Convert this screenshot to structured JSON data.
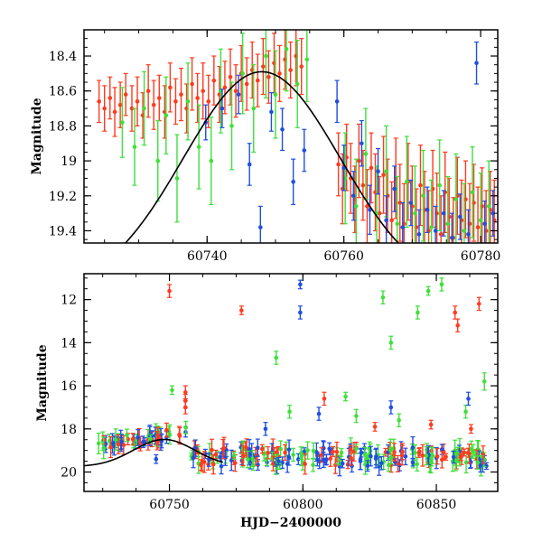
{
  "colors": {
    "red": "#ff3a1f",
    "green": "#3ee03a",
    "blue": "#1f4fe0",
    "fit": "#000000",
    "frame": "#000000"
  },
  "chart_data": [
    {
      "type": "scatter",
      "title": "",
      "xlabel": "",
      "ylabel": "Magnitude",
      "xlim": [
        60722,
        60782.5
      ],
      "ylim": [
        19.47,
        18.25
      ],
      "y_inverted": true,
      "x_ticks": [
        60740,
        60760,
        60780
      ],
      "x_tick_labels": [
        "60740",
        "60760",
        "60780"
      ],
      "y_ticks": [
        18.4,
        18.6,
        18.8,
        19,
        19.2,
        19.4
      ],
      "y_tick_labels": [
        "18.4",
        "18.6",
        "18.8",
        "19",
        "19.2",
        "19.4"
      ],
      "error_bars": true,
      "fit_curve": {
        "peak_x": 60748,
        "peak_mag": 18.49,
        "width_days": 11.5,
        "base_mag": 19.75
      },
      "series": [
        {
          "color_key": "red",
          "points": [
            [
              60724.2,
              18.66,
              0.12
            ],
            [
              60725.0,
              18.7,
              0.13
            ],
            [
              60725.8,
              18.64,
              0.12
            ],
            [
              60726.5,
              18.72,
              0.14
            ],
            [
              60727.3,
              18.68,
              0.13
            ],
            [
              60728.1,
              18.62,
              0.12
            ],
            [
              60729.0,
              18.7,
              0.13
            ],
            [
              60729.8,
              18.66,
              0.14
            ],
            [
              60730.6,
              18.74,
              0.13
            ],
            [
              60731.4,
              18.6,
              0.15
            ],
            [
              60732.2,
              18.68,
              0.14
            ],
            [
              60733.0,
              18.64,
              0.13
            ],
            [
              60733.8,
              18.72,
              0.15
            ],
            [
              60734.6,
              18.58,
              0.14
            ],
            [
              60735.4,
              18.66,
              0.13
            ],
            [
              60736.2,
              18.62,
              0.15
            ],
            [
              60737.0,
              18.7,
              0.14
            ],
            [
              60737.8,
              18.56,
              0.15
            ],
            [
              60738.6,
              18.64,
              0.14
            ],
            [
              60739.4,
              18.6,
              0.16
            ],
            [
              60740.2,
              18.66,
              0.15
            ],
            [
              60741.0,
              18.54,
              0.14
            ],
            [
              60741.8,
              18.62,
              0.16
            ],
            [
              60742.6,
              18.58,
              0.15
            ],
            [
              60743.4,
              18.52,
              0.16
            ],
            [
              60744.2,
              18.6,
              0.15
            ],
            [
              60745.0,
              18.5,
              0.16
            ],
            [
              60745.8,
              18.56,
              0.15
            ],
            [
              60746.6,
              18.48,
              0.16
            ],
            [
              60747.4,
              18.54,
              0.15
            ],
            [
              60748.2,
              18.46,
              0.16
            ],
            [
              60749.0,
              18.52,
              0.15
            ],
            [
              60749.8,
              18.44,
              0.17
            ],
            [
              60750.6,
              18.5,
              0.16
            ],
            [
              60751.4,
              18.42,
              0.17
            ],
            [
              60752.2,
              18.48,
              0.16
            ],
            [
              60753.0,
              18.4,
              0.17
            ],
            [
              60753.8,
              18.46,
              0.16
            ],
            [
              60759.2,
              19.02,
              0.18
            ],
            [
              60759.8,
              19.16,
              0.2
            ],
            [
              60760.4,
              18.98,
              0.19
            ],
            [
              60761.0,
              19.1,
              0.2
            ],
            [
              60761.6,
              19.22,
              0.19
            ],
            [
              60762.2,
              19.0,
              0.21
            ],
            [
              60762.8,
              19.14,
              0.2
            ],
            [
              60763.4,
              19.26,
              0.21
            ],
            [
              60764.0,
              19.04,
              0.2
            ],
            [
              60764.6,
              19.18,
              0.22
            ],
            [
              60765.2,
              19.3,
              0.21
            ],
            [
              60765.8,
              19.08,
              0.22
            ],
            [
              60766.4,
              19.2,
              0.21
            ],
            [
              60767.0,
              19.34,
              0.22
            ],
            [
              60767.6,
              19.1,
              0.23
            ],
            [
              60768.2,
              19.24,
              0.22
            ],
            [
              60768.8,
              19.36,
              0.23
            ],
            [
              60769.4,
              19.12,
              0.22
            ],
            [
              60770.0,
              19.26,
              0.23
            ],
            [
              60770.6,
              19.38,
              0.22
            ],
            [
              60771.2,
              19.14,
              0.23
            ],
            [
              60771.8,
              19.28,
              0.22
            ],
            [
              60772.4,
              19.4,
              0.23
            ],
            [
              60773.0,
              19.16,
              0.22
            ],
            [
              60773.6,
              19.3,
              0.23
            ],
            [
              60774.2,
              19.42,
              0.22
            ],
            [
              60774.8,
              19.18,
              0.23
            ],
            [
              60775.4,
              19.32,
              0.22
            ],
            [
              60776.0,
              19.44,
              0.23
            ],
            [
              60776.6,
              19.2,
              0.22
            ],
            [
              60777.2,
              19.34,
              0.23
            ],
            [
              60777.8,
              19.22,
              0.22
            ],
            [
              60778.4,
              19.36,
              0.23
            ],
            [
              60779.0,
              19.24,
              0.22
            ],
            [
              60779.6,
              19.38,
              0.23
            ],
            [
              60780.2,
              19.26,
              0.22
            ],
            [
              60780.8,
              19.4,
              0.23
            ],
            [
              60781.4,
              19.28,
              0.22
            ],
            [
              60782.0,
              19.34,
              0.23
            ]
          ]
        },
        {
          "color_key": "green",
          "points": [
            [
              60727.6,
              18.78,
              0.2
            ],
            [
              60729.4,
              18.92,
              0.22
            ],
            [
              60730.8,
              18.7,
              0.21
            ],
            [
              60732.8,
              19.0,
              0.23
            ],
            [
              60734.0,
              18.74,
              0.22
            ],
            [
              60735.6,
              19.1,
              0.25
            ],
            [
              60737.2,
              18.66,
              0.22
            ],
            [
              60738.8,
              18.92,
              0.24
            ],
            [
              60740.6,
              19.0,
              0.25
            ],
            [
              60742.0,
              18.6,
              0.24
            ],
            [
              60743.6,
              18.8,
              0.25
            ],
            [
              60745.2,
              18.5,
              0.23
            ],
            [
              60746.8,
              18.7,
              0.25
            ],
            [
              60748.6,
              18.4,
              0.24
            ],
            [
              60750.0,
              18.62,
              0.25
            ],
            [
              60751.6,
              18.36,
              0.24
            ],
            [
              60753.2,
              18.56,
              0.25
            ],
            [
              60754.6,
              18.42,
              0.24
            ],
            [
              60760.2,
              19.1,
              0.26
            ],
            [
              60761.8,
              19.26,
              0.27
            ],
            [
              60763.2,
              18.96,
              0.26
            ],
            [
              60764.8,
              19.3,
              0.27
            ],
            [
              60766.2,
              19.06,
              0.26
            ],
            [
              60767.8,
              19.36,
              0.27
            ],
            [
              60769.2,
              19.12,
              0.26
            ],
            [
              60770.4,
              19.3,
              0.27
            ],
            [
              60771.6,
              19.2,
              0.26
            ],
            [
              60772.8,
              19.38,
              0.27
            ],
            [
              60774.0,
              19.14,
              0.26
            ],
            [
              60775.2,
              19.36,
              0.27
            ],
            [
              60776.4,
              19.22,
              0.26
            ],
            [
              60777.6,
              19.4,
              0.27
            ],
            [
              60778.8,
              19.18,
              0.26
            ],
            [
              60780.0,
              19.34,
              0.27
            ],
            [
              60781.2,
              19.26,
              0.26
            ]
          ]
        },
        {
          "color_key": "blue",
          "points": [
            [
              60739.8,
              18.78,
              0.1
            ],
            [
              60742.2,
              18.7,
              0.11
            ],
            [
              60744.6,
              18.62,
              0.11
            ],
            [
              60746.2,
              19.02,
              0.12
            ],
            [
              60747.8,
              19.38,
              0.12
            ],
            [
              60749.4,
              18.72,
              0.11
            ],
            [
              60751.0,
              18.82,
              0.12
            ],
            [
              60752.6,
              19.12,
              0.13
            ],
            [
              60754.2,
              18.94,
              0.12
            ],
            [
              60759.0,
              18.66,
              0.12
            ],
            [
              60760.0,
              19.04,
              0.13
            ],
            [
              60761.4,
              19.2,
              0.14
            ],
            [
              60762.6,
              18.9,
              0.13
            ],
            [
              60763.8,
              19.28,
              0.14
            ],
            [
              60765.0,
              19.06,
              0.13
            ],
            [
              60766.2,
              19.34,
              0.14
            ],
            [
              60767.4,
              19.16,
              0.13
            ],
            [
              60768.6,
              19.38,
              0.14
            ],
            [
              60769.8,
              19.24,
              0.13
            ],
            [
              60771.0,
              19.42,
              0.14
            ],
            [
              60772.2,
              19.28,
              0.13
            ],
            [
              60773.4,
              19.4,
              0.14
            ],
            [
              60774.6,
              19.3,
              0.13
            ],
            [
              60775.8,
              19.44,
              0.14
            ],
            [
              60777.0,
              19.32,
              0.13
            ],
            [
              60778.2,
              19.42,
              0.14
            ],
            [
              60779.4,
              18.44,
              0.12
            ],
            [
              60780.6,
              19.36,
              0.13
            ],
            [
              60781.8,
              19.3,
              0.13
            ]
          ]
        }
      ]
    },
    {
      "type": "scatter",
      "title": "",
      "xlabel": "HJD−2400000",
      "ylabel": "Magnitude",
      "xlim": [
        60718,
        60873
      ],
      "ylim": [
        20.9,
        10.8
      ],
      "y_inverted": true,
      "x_ticks": [
        60750,
        60800,
        60850
      ],
      "x_tick_labels": [
        "60750",
        "60800",
        "60850"
      ],
      "y_ticks": [
        12,
        14,
        16,
        18,
        20
      ],
      "y_tick_labels": [
        "12",
        "14",
        "16",
        "18",
        "20"
      ],
      "error_bars": true,
      "fit_curve": {
        "peak_x": 60748,
        "peak_mag": 18.49,
        "width_days": 11.5,
        "base_mag": 19.75,
        "x_end": 60770
      },
      "bands": [
        {
          "x_start": 60722,
          "x_end": 60757,
          "y_start": 18.75,
          "y_end": 18.15,
          "scatter": 0.25,
          "count": 60,
          "colors": [
            "red",
            "green",
            "blue"
          ]
        },
        {
          "x_start": 60758,
          "x_end": 60870,
          "y_start": 19.3,
          "y_end": 19.3,
          "scatter": 0.45,
          "count": 220,
          "colors": [
            "red",
            "green",
            "blue"
          ]
        }
      ],
      "series": [
        {
          "color_key": "red",
          "points": [
            [
              60750,
              11.6,
              0.3
            ],
            [
              60777,
              12.5,
              0.2
            ],
            [
              60857,
              12.6,
              0.3
            ],
            [
              60858,
              13.2,
              0.3
            ],
            [
              60866,
              12.2,
              0.3
            ],
            [
              60756,
              16.3,
              0.3
            ],
            [
              60756,
              16.7,
              0.3
            ],
            [
              60756,
              17.0,
              0.3
            ],
            [
              60808,
              16.6,
              0.3
            ],
            [
              60827,
              17.9,
              0.2
            ],
            [
              60848,
              17.8,
              0.2
            ],
            [
              60863,
              18.0,
              0.2
            ]
          ]
        },
        {
          "color_key": "green",
          "points": [
            [
              60751,
              16.2,
              0.2
            ],
            [
              60790,
              14.7,
              0.3
            ],
            [
              60830,
              11.9,
              0.3
            ],
            [
              60833,
              14.0,
              0.3
            ],
            [
              60843,
              12.6,
              0.3
            ],
            [
              60847,
              11.6,
              0.2
            ],
            [
              60852,
              11.3,
              0.3
            ],
            [
              60868,
              15.8,
              0.4
            ],
            [
              60816,
              16.5,
              0.2
            ],
            [
              60795,
              17.2,
              0.3
            ],
            [
              60820,
              17.4,
              0.3
            ],
            [
              60861,
              17.2,
              0.3
            ],
            [
              60836,
              17.6,
              0.3
            ]
          ]
        },
        {
          "color_key": "blue",
          "points": [
            [
              60799,
              11.3,
              0.2
            ],
            [
              60799,
              12.6,
              0.3
            ],
            [
              60862,
              16.6,
              0.3
            ],
            [
              60833,
              17.0,
              0.3
            ],
            [
              60806,
              17.3,
              0.3
            ],
            [
              60786,
              18.0,
              0.3
            ],
            [
              60769,
              19.3,
              0.2
            ],
            [
              60745,
              19.4,
              0.2
            ]
          ]
        }
      ]
    }
  ]
}
